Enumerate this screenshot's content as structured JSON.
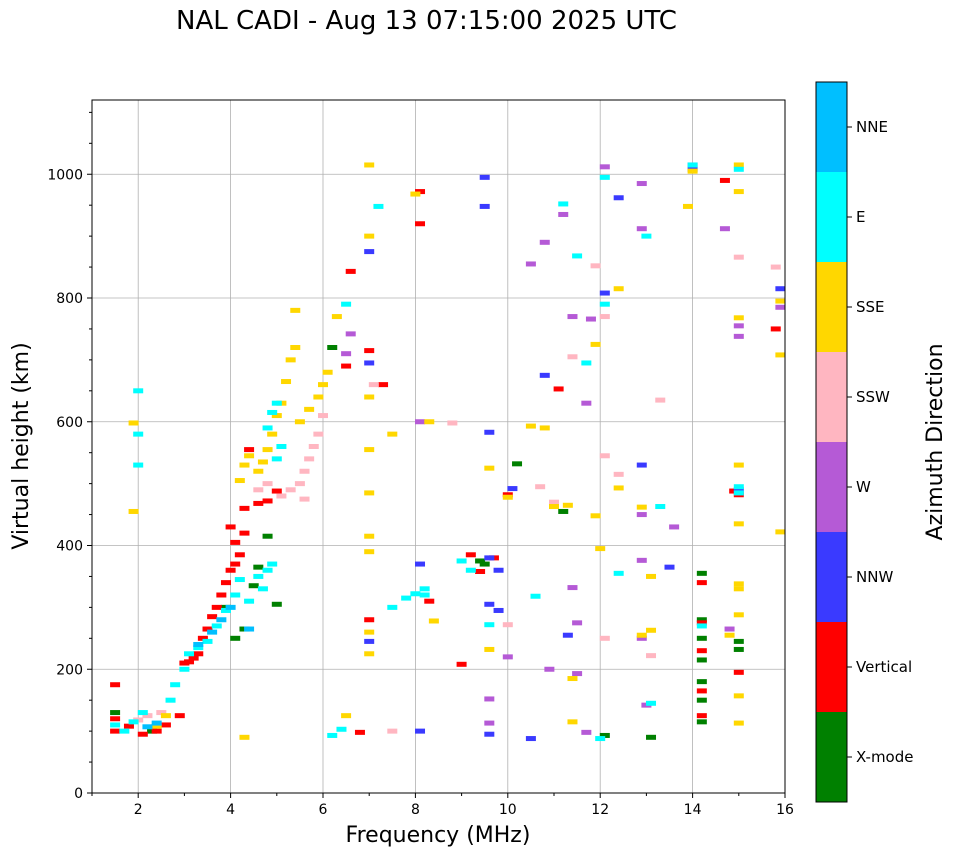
{
  "chart_data": {
    "type": "scatter",
    "title": "NAL CADI - Aug 13 07:15:00 2025 UTC",
    "xlabel": "Frequency (MHz)",
    "ylabel": "Virtual height (km)",
    "xlim": [
      1,
      16
    ],
    "ylim": [
      0,
      1120
    ],
    "xticks": [
      2,
      4,
      6,
      8,
      10,
      12,
      14,
      16
    ],
    "yticks": [
      0,
      200,
      400,
      600,
      800,
      1000
    ],
    "grid": true,
    "colorbar": {
      "label": "Azimuth Direction",
      "categories": [
        "X-mode",
        "Vertical",
        "NNW",
        "W",
        "SSW",
        "SSE",
        "E",
        "NNE"
      ],
      "colors": [
        "#008000",
        "#ff0000",
        "#3a3aff",
        "#b55ad6",
        "#ffb6c1",
        "#ffd700",
        "#00ffff",
        "#00bfff"
      ]
    },
    "series": [
      {
        "name": "X-mode",
        "points": [
          [
            4.1,
            250
          ],
          [
            4.3,
            265
          ],
          [
            4.6,
            365
          ],
          [
            4.8,
            415
          ],
          [
            5.0,
            305
          ],
          [
            6.2,
            720
          ],
          [
            9.5,
            370
          ],
          [
            10.2,
            532
          ],
          [
            11.2,
            455
          ],
          [
            12.1,
            93
          ],
          [
            13.1,
            90
          ],
          [
            14.2,
            355
          ],
          [
            14.2,
            280
          ],
          [
            14.2,
            250
          ],
          [
            14.2,
            215
          ],
          [
            14.2,
            180
          ],
          [
            14.2,
            150
          ],
          [
            14.2,
            115
          ],
          [
            15.0,
            245
          ],
          [
            15.0,
            232
          ],
          [
            1.5,
            130
          ],
          [
            2.3,
            100
          ],
          [
            3.9,
            300
          ],
          [
            4.5,
            335
          ],
          [
            9.4,
            375
          ]
        ]
      },
      {
        "name": "Vertical",
        "points": [
          [
            1.5,
            175
          ],
          [
            1.5,
            120
          ],
          [
            1.5,
            100
          ],
          [
            1.8,
            108
          ],
          [
            2.1,
            95
          ],
          [
            2.4,
            100
          ],
          [
            2.6,
            110
          ],
          [
            2.9,
            125
          ],
          [
            3.0,
            210
          ],
          [
            3.1,
            212
          ],
          [
            3.2,
            218
          ],
          [
            3.3,
            225
          ],
          [
            3.4,
            250
          ],
          [
            3.5,
            265
          ],
          [
            3.6,
            285
          ],
          [
            3.7,
            300
          ],
          [
            3.8,
            320
          ],
          [
            3.9,
            340
          ],
          [
            4.0,
            360
          ],
          [
            4.1,
            370
          ],
          [
            4.2,
            385
          ],
          [
            4.3,
            420
          ],
          [
            4.0,
            430
          ],
          [
            4.3,
            460
          ],
          [
            4.6,
            468
          ],
          [
            4.8,
            472
          ],
          [
            5.0,
            488
          ],
          [
            4.4,
            555
          ],
          [
            4.1,
            405
          ],
          [
            6.5,
            690
          ],
          [
            6.6,
            843
          ],
          [
            7.0,
            715
          ],
          [
            7.0,
            280
          ],
          [
            7.3,
            660
          ],
          [
            8.1,
            972
          ],
          [
            8.1,
            920
          ],
          [
            8.3,
            310
          ],
          [
            9.2,
            385
          ],
          [
            9.4,
            358
          ],
          [
            9.7,
            380
          ],
          [
            9.0,
            208
          ],
          [
            10.0,
            482
          ],
          [
            11.1,
            653
          ],
          [
            14.2,
            340
          ],
          [
            14.2,
            275
          ],
          [
            14.2,
            230
          ],
          [
            14.2,
            165
          ],
          [
            14.2,
            125
          ],
          [
            14.7,
            990
          ],
          [
            14.9,
            488
          ],
          [
            15.0,
            482
          ],
          [
            15.0,
            195
          ],
          [
            15.8,
            750
          ],
          [
            6.8,
            98
          ]
        ]
      },
      {
        "name": "NNW",
        "points": [
          [
            7.0,
            875
          ],
          [
            7.0,
            695
          ],
          [
            7.0,
            245
          ],
          [
            8.1,
            370
          ],
          [
            8.1,
            100
          ],
          [
            9.5,
            948
          ],
          [
            9.5,
            995
          ],
          [
            9.6,
            583
          ],
          [
            9.6,
            305
          ],
          [
            9.8,
            295
          ],
          [
            9.6,
            380
          ],
          [
            10.1,
            492
          ],
          [
            10.5,
            88
          ],
          [
            10.8,
            675
          ],
          [
            11.3,
            255
          ],
          [
            12.1,
            808
          ],
          [
            12.4,
            962
          ],
          [
            12.9,
            530
          ],
          [
            13.5,
            365
          ],
          [
            14.0,
            1008
          ],
          [
            15.0,
            490
          ],
          [
            15.9,
            815
          ],
          [
            9.6,
            95
          ],
          [
            9.8,
            360
          ]
        ]
      },
      {
        "name": "W",
        "points": [
          [
            6.5,
            710
          ],
          [
            6.6,
            742
          ],
          [
            8.1,
            600
          ],
          [
            10.5,
            855
          ],
          [
            10.8,
            890
          ],
          [
            11.2,
            935
          ],
          [
            11.4,
            770
          ],
          [
            11.7,
            630
          ],
          [
            12.1,
            1012
          ],
          [
            12.9,
            912
          ],
          [
            12.9,
            985
          ],
          [
            13.6,
            430
          ],
          [
            14.7,
            912
          ],
          [
            15.0,
            755
          ],
          [
            15.0,
            738
          ],
          [
            15.9,
            785
          ],
          [
            12.9,
            376
          ],
          [
            12.9,
            250
          ],
          [
            12.9,
            450
          ],
          [
            11.4,
            332
          ],
          [
            11.5,
            275
          ],
          [
            11.5,
            193
          ],
          [
            11.7,
            98
          ],
          [
            10.0,
            220
          ],
          [
            9.6,
            152
          ],
          [
            9.6,
            113
          ],
          [
            10.9,
            200
          ],
          [
            13.0,
            142
          ],
          [
            11.8,
            766
          ],
          [
            14.0,
            1015
          ],
          [
            14.8,
            265
          ]
        ]
      },
      {
        "name": "SSW",
        "points": [
          [
            2.0,
            118
          ],
          [
            2.2,
            125
          ],
          [
            2.5,
            130
          ],
          [
            4.6,
            490
          ],
          [
            4.8,
            500
          ],
          [
            5.1,
            480
          ],
          [
            5.3,
            490
          ],
          [
            5.5,
            500
          ],
          [
            5.6,
            520
          ],
          [
            5.7,
            540
          ],
          [
            5.8,
            560
          ],
          [
            5.9,
            580
          ],
          [
            6.0,
            610
          ],
          [
            5.6,
            475
          ],
          [
            7.1,
            660
          ],
          [
            7.5,
            100
          ],
          [
            8.8,
            598
          ],
          [
            10.0,
            272
          ],
          [
            11.0,
            470
          ],
          [
            11.4,
            705
          ],
          [
            11.9,
            852
          ],
          [
            12.1,
            770
          ],
          [
            12.1,
            545
          ],
          [
            12.4,
            515
          ],
          [
            13.3,
            635
          ],
          [
            15.0,
            866
          ],
          [
            15.8,
            850
          ],
          [
            10.7,
            495
          ],
          [
            12.1,
            250
          ],
          [
            13.1,
            222
          ]
        ]
      },
      {
        "name": "SSE",
        "points": [
          [
            1.9,
            598
          ],
          [
            1.9,
            455
          ],
          [
            2.4,
            108
          ],
          [
            2.6,
            125
          ],
          [
            4.2,
            505
          ],
          [
            4.3,
            530
          ],
          [
            4.4,
            545
          ],
          [
            4.6,
            520
          ],
          [
            4.7,
            535
          ],
          [
            4.8,
            555
          ],
          [
            4.9,
            580
          ],
          [
            5.0,
            610
          ],
          [
            5.1,
            630
          ],
          [
            5.2,
            665
          ],
          [
            5.3,
            700
          ],
          [
            5.4,
            720
          ],
          [
            5.4,
            780
          ],
          [
            5.5,
            600
          ],
          [
            5.7,
            620
          ],
          [
            5.9,
            640
          ],
          [
            6.0,
            660
          ],
          [
            6.1,
            680
          ],
          [
            6.3,
            770
          ],
          [
            7.0,
            1015
          ],
          [
            7.0,
            900
          ],
          [
            7.0,
            640
          ],
          [
            7.0,
            555
          ],
          [
            7.0,
            485
          ],
          [
            7.0,
            415
          ],
          [
            7.0,
            390
          ],
          [
            7.0,
            260
          ],
          [
            7.0,
            225
          ],
          [
            7.5,
            580
          ],
          [
            8.0,
            968
          ],
          [
            8.3,
            600
          ],
          [
            8.4,
            278
          ],
          [
            9.6,
            525
          ],
          [
            9.6,
            232
          ],
          [
            10.0,
            478
          ],
          [
            10.5,
            593
          ],
          [
            10.8,
            590
          ],
          [
            11.0,
            463
          ],
          [
            11.3,
            465
          ],
          [
            11.4,
            185
          ],
          [
            11.4,
            115
          ],
          [
            11.9,
            725
          ],
          [
            11.9,
            448
          ],
          [
            12.4,
            815
          ],
          [
            12.4,
            493
          ],
          [
            12.9,
            462
          ],
          [
            12.9,
            255
          ],
          [
            13.1,
            350
          ],
          [
            13.9,
            948
          ],
          [
            14.0,
            1005
          ],
          [
            14.8,
            255
          ],
          [
            15.0,
            1015
          ],
          [
            15.0,
            972
          ],
          [
            15.0,
            768
          ],
          [
            15.0,
            530
          ],
          [
            15.0,
            435
          ],
          [
            15.0,
            338
          ],
          [
            15.0,
            330
          ],
          [
            15.0,
            288
          ],
          [
            15.0,
            157
          ],
          [
            15.0,
            113
          ],
          [
            15.9,
            708
          ],
          [
            15.9,
            795
          ],
          [
            15.9,
            422
          ],
          [
            12.0,
            395
          ],
          [
            13.1,
            263
          ],
          [
            6.5,
            125
          ],
          [
            4.3,
            90
          ]
        ]
      },
      {
        "name": "E",
        "points": [
          [
            1.5,
            110
          ],
          [
            1.7,
            100
          ],
          [
            1.9,
            115
          ],
          [
            2.0,
            650
          ],
          [
            2.0,
            530
          ],
          [
            2.0,
            580
          ],
          [
            2.1,
            130
          ],
          [
            2.7,
            150
          ],
          [
            2.8,
            175
          ],
          [
            3.0,
            200
          ],
          [
            3.1,
            225
          ],
          [
            3.3,
            235
          ],
          [
            3.5,
            245
          ],
          [
            3.7,
            270
          ],
          [
            3.9,
            295
          ],
          [
            4.1,
            320
          ],
          [
            4.2,
            345
          ],
          [
            4.4,
            310
          ],
          [
            4.6,
            350
          ],
          [
            4.7,
            330
          ],
          [
            4.8,
            360
          ],
          [
            4.9,
            370
          ],
          [
            5.0,
            540
          ],
          [
            5.1,
            560
          ],
          [
            4.8,
            590
          ],
          [
            4.9,
            615
          ],
          [
            5.0,
            630
          ],
          [
            6.5,
            790
          ],
          [
            6.4,
            103
          ],
          [
            6.2,
            93
          ],
          [
            7.2,
            948
          ],
          [
            7.5,
            300
          ],
          [
            7.8,
            315
          ],
          [
            8.0,
            322
          ],
          [
            8.2,
            330
          ],
          [
            9.0,
            375
          ],
          [
            9.2,
            360
          ],
          [
            9.6,
            272
          ],
          [
            10.6,
            318
          ],
          [
            11.2,
            952
          ],
          [
            11.5,
            868
          ],
          [
            11.7,
            695
          ],
          [
            12.0,
            88
          ],
          [
            12.1,
            995
          ],
          [
            12.1,
            790
          ],
          [
            12.4,
            355
          ],
          [
            13.0,
            900
          ],
          [
            13.3,
            463
          ],
          [
            14.0,
            1015
          ],
          [
            15.0,
            1008
          ],
          [
            15.0,
            495
          ],
          [
            15.0,
            485
          ],
          [
            14.2,
            270
          ],
          [
            13.1,
            145
          ],
          [
            8.2,
            320
          ]
        ]
      },
      {
        "name": "NNE",
        "points": [
          [
            3.3,
            240
          ],
          [
            3.6,
            260
          ],
          [
            3.8,
            280
          ],
          [
            4.0,
            300
          ],
          [
            4.4,
            265
          ],
          [
            2.2,
            107
          ],
          [
            2.4,
            113
          ]
        ]
      }
    ]
  }
}
